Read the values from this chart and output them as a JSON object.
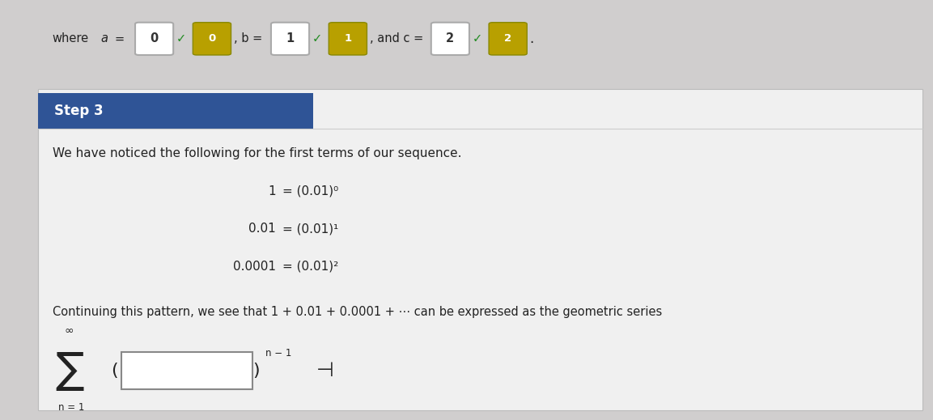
{
  "bg_color": "#d0cece",
  "fig_width": 11.53,
  "fig_height": 5.19,
  "step_label": "Step 3",
  "step_bg": "#2f5496",
  "step_text_color": "#ffffff",
  "body_text_1": "We have noticed the following for the first terms of our sequence.",
  "continuing_text": "Continuing this pattern, we see that 1 + 0.01 + 0.0001 + ⋯ can be expressed as the geometric series",
  "sigma_bottom": "n = 1",
  "sigma_top": "∞",
  "content_bg": "#f0f0f0",
  "text_color": "#222222"
}
